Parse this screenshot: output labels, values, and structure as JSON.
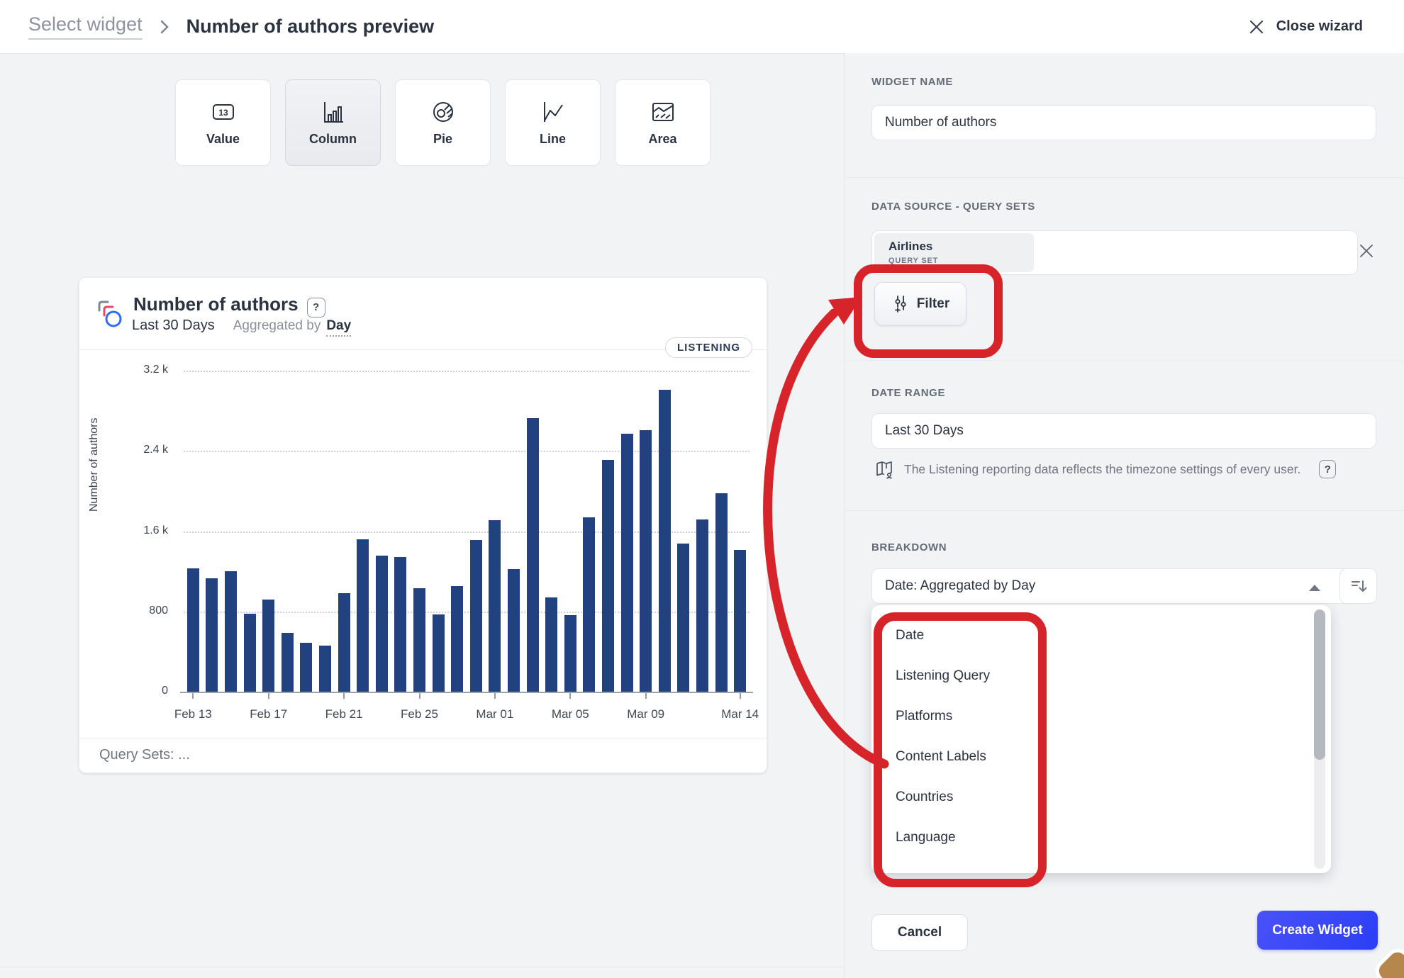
{
  "header": {
    "breadcrumb_back": "Select widget",
    "title": "Number of authors preview",
    "close_label": "Close wizard"
  },
  "widget_types": [
    {
      "label": "Value",
      "icon": "value-icon",
      "selected": false
    },
    {
      "label": "Column",
      "icon": "column-icon",
      "selected": true
    },
    {
      "label": "Pie",
      "icon": "pie-icon",
      "selected": false
    },
    {
      "label": "Line",
      "icon": "line-icon",
      "selected": false
    },
    {
      "label": "Area",
      "icon": "area-icon",
      "selected": false
    }
  ],
  "chart_card": {
    "title": "Number of authors",
    "help_glyph": "?",
    "subtitle_range": "Last 30 Days",
    "subtitle_agg_prefix": "Aggregated by",
    "subtitle_agg_value": "Day",
    "badge": "LISTENING",
    "footer": "Query Sets: ..."
  },
  "chart_data": {
    "type": "bar",
    "title": "Number of authors",
    "ylabel": "Number of authors",
    "bar_color": "#21417f",
    "grid": "horizontal-dotted",
    "ylim": [
      0,
      3200
    ],
    "x": [
      "Feb 13",
      "Feb 14",
      "Feb 15",
      "Feb 16",
      "Feb 17",
      "Feb 18",
      "Feb 19",
      "Feb 20",
      "Feb 21",
      "Feb 22",
      "Feb 23",
      "Feb 24",
      "Feb 25",
      "Feb 26",
      "Feb 27",
      "Feb 28",
      "Mar 01",
      "Mar 02",
      "Mar 03",
      "Mar 04",
      "Mar 05",
      "Mar 06",
      "Mar 07",
      "Mar 08",
      "Mar 09",
      "Mar 10",
      "Mar 11",
      "Mar 12",
      "Mar 13",
      "Mar 14"
    ],
    "values": [
      1230,
      1130,
      1200,
      780,
      920,
      590,
      490,
      460,
      980,
      1520,
      1360,
      1340,
      1030,
      770,
      1050,
      1510,
      1710,
      1220,
      2730,
      940,
      760,
      1740,
      2310,
      2570,
      2610,
      3010,
      1480,
      1720,
      1980,
      1410
    ],
    "y_ticks": [
      {
        "value": 0,
        "label": "0"
      },
      {
        "value": 800,
        "label": "800"
      },
      {
        "value": 1600,
        "label": "1.6 k"
      },
      {
        "value": 2400,
        "label": "2.4 k"
      },
      {
        "value": 3200,
        "label": "3.2 k"
      }
    ],
    "x_ticks": [
      {
        "index": 0,
        "label": "Feb 13"
      },
      {
        "index": 4,
        "label": "Feb 17"
      },
      {
        "index": 8,
        "label": "Feb 21"
      },
      {
        "index": 12,
        "label": "Feb 25"
      },
      {
        "index": 16,
        "label": "Mar 01"
      },
      {
        "index": 20,
        "label": "Mar 05"
      },
      {
        "index": 24,
        "label": "Mar 09"
      },
      {
        "index": 29,
        "label": "Mar 14"
      }
    ]
  },
  "panel": {
    "widget_name": {
      "label": "WIDGET NAME",
      "value": "Number of authors"
    },
    "data_source": {
      "label": "DATA SOURCE - QUERY SETS",
      "chip_title": "Airlines",
      "chip_subtitle": "QUERY SET",
      "filter_label": "Filter"
    },
    "date_range": {
      "label": "DATE RANGE",
      "value": "Last 30 Days",
      "note": "The Listening reporting data reflects the timezone settings of every user.",
      "note_help_glyph": "?"
    },
    "breakdown": {
      "label": "BREAKDOWN",
      "value": "Date: Aggregated by Day",
      "options": [
        "Date",
        "Listening Query",
        "Platforms",
        "Content Labels",
        "Countries",
        "Language"
      ]
    },
    "actions": {
      "cancel": "Cancel",
      "create": "Create Widget"
    }
  },
  "colors": {
    "bar": "#21417f",
    "annotation_red": "#d7242b",
    "primary_blue": "#2b3ef5",
    "text_dark": "#2b3340",
    "text_muted": "#6e747f"
  }
}
